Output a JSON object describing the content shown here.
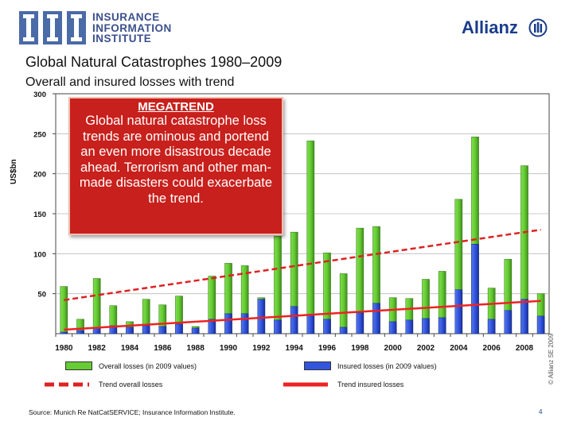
{
  "header": {
    "iii_logo_lines": [
      "INSURANCE",
      "INFORMATION",
      "INSTITUTE"
    ],
    "allianz_logo": "Allianz",
    "title": "Global Natural Catastrophes 1980–2009",
    "subtitle": "Overall and insured losses with trend"
  },
  "megatrend": {
    "heading": "MEGATREND",
    "text": "Global natural catastrophe loss trends are ominous and portend an even more disastrous decade ahead. Terrorism and other man-made disasters could exacerbate the trend."
  },
  "legend": {
    "overall": "Overall losses (in 2009 values)",
    "insured": "Insured losses (in 2009 values)",
    "trend_overall": "Trend overall losses",
    "trend_insured": "Trend insured losses"
  },
  "copyright": "© Allianz SE 2009",
  "source": "Source:  Munich Re NatCatSERVICE; Insurance Information Institute.",
  "page_number": "4",
  "colors": {
    "overall": "#66cc33",
    "insured": "#3355dd",
    "trend_overall": "#dd2222",
    "trend_insured": "#ee2222",
    "megatrend_box": "#c8201c"
  },
  "chart_data": {
    "type": "bar",
    "ylabel": "US$bn",
    "ylim": [
      0,
      300
    ],
    "yticks": [
      50,
      100,
      150,
      200,
      250,
      300
    ],
    "x_tick_labels": [
      "1980",
      "1982",
      "1984",
      "1986",
      "1988",
      "1990",
      "1992",
      "1994",
      "1996",
      "1998",
      "2000",
      "2002",
      "2004",
      "2006",
      "2008"
    ],
    "categories": [
      1980,
      1981,
      1982,
      1983,
      1984,
      1985,
      1986,
      1987,
      1988,
      1989,
      1990,
      1991,
      1992,
      1993,
      1994,
      1995,
      1996,
      1997,
      1998,
      1999,
      2000,
      2001,
      2002,
      2003,
      2004,
      2005,
      2006,
      2007,
      2008,
      2009
    ],
    "series": [
      {
        "name": "Overall losses (in 2009 values)",
        "values": [
          59,
          18,
          69,
          35,
          15,
          43,
          36,
          47,
          9,
          72,
          88,
          85,
          45,
          122,
          127,
          241,
          101,
          75,
          132,
          134,
          45,
          44,
          68,
          78,
          168,
          246,
          57,
          93,
          210,
          50
        ]
      },
      {
        "name": "Insured losses (in 2009 values)",
        "values": [
          2,
          4,
          7,
          10,
          8,
          10,
          9,
          12,
          7,
          18,
          25,
          25,
          43,
          17,
          34,
          24,
          18,
          8,
          26,
          38,
          15,
          17,
          19,
          20,
          55,
          112,
          18,
          29,
          43,
          22
        ]
      }
    ],
    "trend_overall": {
      "name": "Trend overall losses",
      "start": [
        1980,
        42
      ],
      "end": [
        2009,
        130
      ]
    },
    "trend_insured": {
      "name": "Trend insured losses",
      "start": [
        1980,
        5
      ],
      "end": [
        2009,
        41
      ]
    },
    "grid": true
  }
}
